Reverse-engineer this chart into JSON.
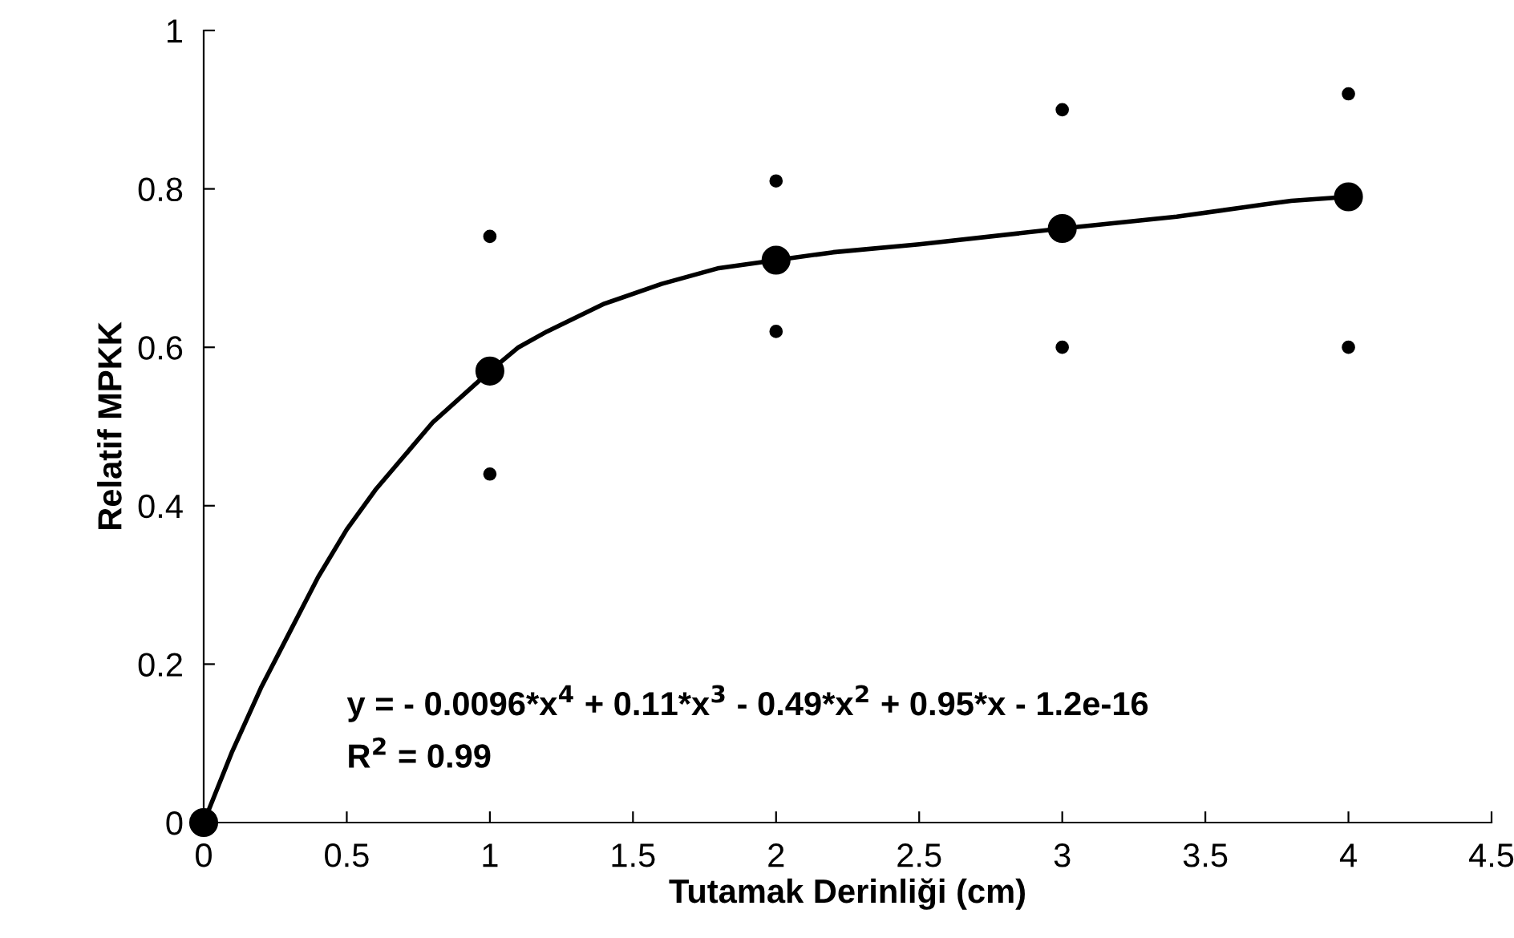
{
  "chart_data": {
    "type": "scatter",
    "xlabel": "Tutamak Derinliği (cm)",
    "ylabel": "Relatif MPKK",
    "xlim": [
      0,
      4.5
    ],
    "xticks": [
      0,
      0.5,
      1,
      1.5,
      2,
      2.5,
      3,
      3.5,
      4,
      4.5
    ],
    "ylim": [
      0,
      1
    ],
    "yticks": [
      0,
      0.2,
      0.4,
      0.6,
      0.8,
      1
    ],
    "grid": false,
    "legend": false,
    "series": [
      {
        "type": "line",
        "color": "#000000",
        "marker": "none",
        "line_style": "solid",
        "x": [
          0,
          0.1,
          0.2,
          0.3,
          0.4,
          0.5,
          0.6,
          0.8,
          1,
          1.1,
          1.2,
          1.4,
          1.6,
          1.8,
          2,
          2.2,
          2.5,
          3,
          3.4,
          3.7,
          3.8,
          4
        ],
        "values": [
          0,
          0.09,
          0.17,
          0.24,
          0.31,
          0.37,
          0.42,
          0.505,
          0.57,
          0.6,
          0.62,
          0.655,
          0.68,
          0.7,
          0.71,
          0.72,
          0.73,
          0.75,
          0.765,
          0.78,
          0.785,
          0.79
        ]
      },
      {
        "color": "#000000",
        "marker": "circle",
        "x": [
          0,
          1,
          2,
          3,
          4
        ],
        "values": [
          0,
          0.57,
          0.71,
          0.75,
          0.79
        ]
      },
      {
        "color": "#000000",
        "marker": "circle",
        "x": [
          1,
          1,
          2,
          2,
          3,
          3,
          4,
          4
        ],
        "values": [
          0.74,
          0.44,
          0.81,
          0.62,
          0.9,
          0.6,
          0.92,
          0.6
        ]
      }
    ],
    "annotations": [
      "y = - 0.0096*x$^{4}$ + 0.11*x$^{3}$ - 0.49*x$^{2}$ + 0.95*x - 1.2e-16",
      "R$^{2}$ = 0.99"
    ]
  }
}
